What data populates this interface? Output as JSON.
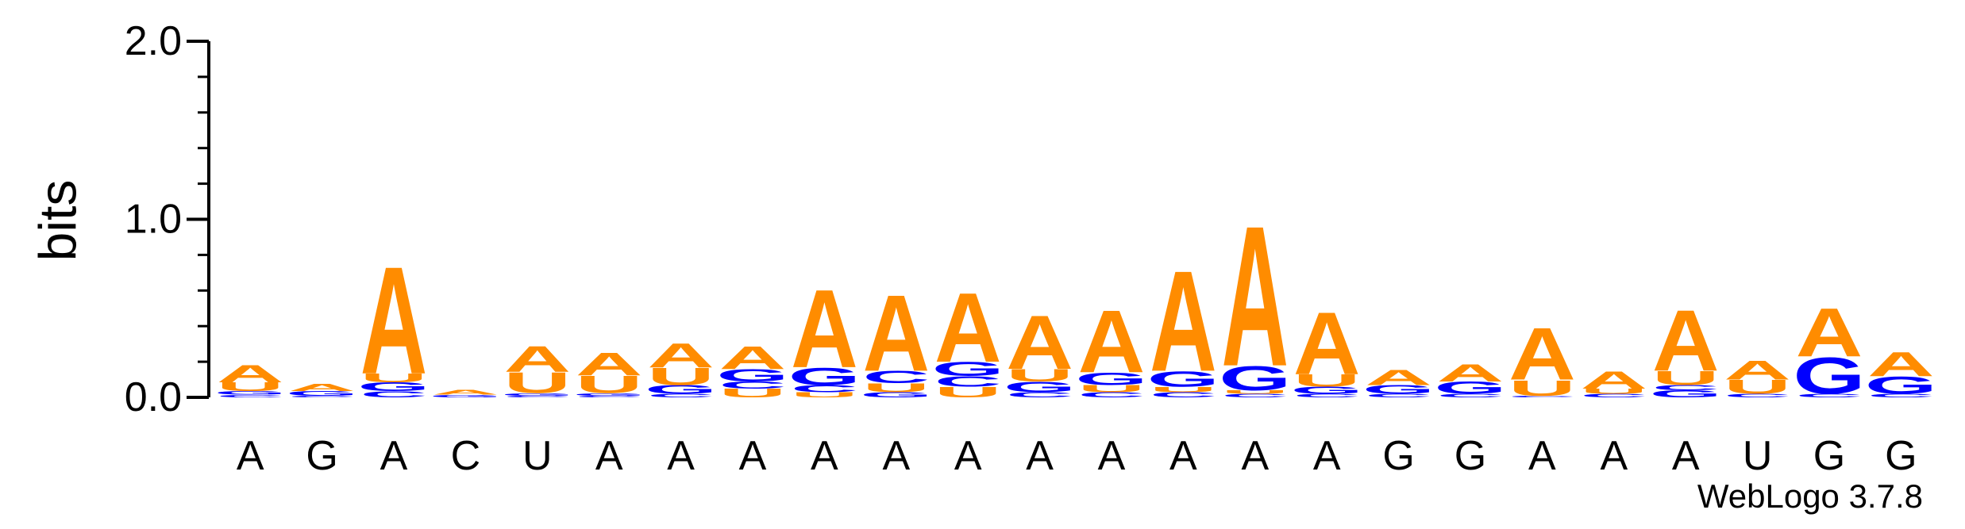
{
  "chart_data": {
    "type": "sequence-logo",
    "ylabel": "bits",
    "ylim": [
      0,
      2.0
    ],
    "ytick_labels": [
      "0.0",
      "1.0",
      "2.0"
    ],
    "yticks": [
      0.0,
      1.0,
      2.0
    ],
    "positions": [
      "A",
      "G",
      "A",
      "C",
      "U",
      "A",
      "A",
      "A",
      "A",
      "A",
      "A",
      "A",
      "A",
      "A",
      "A",
      "A",
      "G",
      "G",
      "A",
      "A",
      "A",
      "U",
      "G",
      "G"
    ],
    "colors": {
      "A": "#ff8c00",
      "U": "#ff8c00",
      "G": "#0000ff",
      "C": "#0000ff"
    },
    "stacks": [
      [
        {
          "l": "C",
          "v": 0.015
        },
        {
          "l": "G",
          "v": 0.02
        },
        {
          "l": "U",
          "v": 0.05
        },
        {
          "l": "A",
          "v": 0.1
        }
      ],
      [
        {
          "l": "C",
          "v": 0.01
        },
        {
          "l": "G",
          "v": 0.025
        },
        {
          "l": "A",
          "v": 0.04
        }
      ],
      [
        {
          "l": "C",
          "v": 0.035
        },
        {
          "l": "G",
          "v": 0.05
        },
        {
          "l": "U",
          "v": 0.05
        },
        {
          "l": "A",
          "v": 0.62
        }
      ],
      [
        {
          "l": "G",
          "v": 0.015
        },
        {
          "l": "A",
          "v": 0.025
        }
      ],
      [
        {
          "l": "C",
          "v": 0.01
        },
        {
          "l": "G",
          "v": 0.015
        },
        {
          "l": "U",
          "v": 0.12
        },
        {
          "l": "A",
          "v": 0.15
        }
      ],
      [
        {
          "l": "C",
          "v": 0.01
        },
        {
          "l": "G",
          "v": 0.015
        },
        {
          "l": "U",
          "v": 0.1
        },
        {
          "l": "A",
          "v": 0.13
        }
      ],
      [
        {
          "l": "C",
          "v": 0.02
        },
        {
          "l": "G",
          "v": 0.05
        },
        {
          "l": "U",
          "v": 0.1
        },
        {
          "l": "A",
          "v": 0.14
        }
      ],
      [
        {
          "l": "U",
          "v": 0.05
        },
        {
          "l": "C",
          "v": 0.04
        },
        {
          "l": "G",
          "v": 0.07
        },
        {
          "l": "A",
          "v": 0.13
        }
      ],
      [
        {
          "l": "U",
          "v": 0.03
        },
        {
          "l": "C",
          "v": 0.04
        },
        {
          "l": "G",
          "v": 0.1
        },
        {
          "l": "A",
          "v": 0.45
        }
      ],
      [
        {
          "l": "G",
          "v": 0.03
        },
        {
          "l": "U",
          "v": 0.05
        },
        {
          "l": "C",
          "v": 0.07
        },
        {
          "l": "A",
          "v": 0.44
        }
      ],
      [
        {
          "l": "U",
          "v": 0.06
        },
        {
          "l": "C",
          "v": 0.06
        },
        {
          "l": "G",
          "v": 0.08
        },
        {
          "l": "A",
          "v": 0.4
        }
      ],
      [
        {
          "l": "C",
          "v": 0.03
        },
        {
          "l": "G",
          "v": 0.06
        },
        {
          "l": "U",
          "v": 0.07
        },
        {
          "l": "A",
          "v": 0.31
        }
      ],
      [
        {
          "l": "C",
          "v": 0.03
        },
        {
          "l": "U",
          "v": 0.04
        },
        {
          "l": "G",
          "v": 0.07
        },
        {
          "l": "A",
          "v": 0.36
        }
      ],
      [
        {
          "l": "C",
          "v": 0.03
        },
        {
          "l": "U",
          "v": 0.03
        },
        {
          "l": "G",
          "v": 0.09
        },
        {
          "l": "A",
          "v": 0.58
        }
      ],
      [
        {
          "l": "C",
          "v": 0.02
        },
        {
          "l": "U",
          "v": 0.02
        },
        {
          "l": "G",
          "v": 0.14
        },
        {
          "l": "A",
          "v": 0.81
        }
      ],
      [
        {
          "l": "C",
          "v": 0.02
        },
        {
          "l": "G",
          "v": 0.04
        },
        {
          "l": "U",
          "v": 0.07
        },
        {
          "l": "A",
          "v": 0.36
        }
      ],
      [
        {
          "l": "C",
          "v": 0.02
        },
        {
          "l": "G",
          "v": 0.05
        },
        {
          "l": "A",
          "v": 0.09
        }
      ],
      [
        {
          "l": "C",
          "v": 0.02
        },
        {
          "l": "G",
          "v": 0.07
        },
        {
          "l": "A",
          "v": 0.1
        }
      ],
      [
        {
          "l": "C",
          "v": 0.01
        },
        {
          "l": "U",
          "v": 0.09
        },
        {
          "l": "A",
          "v": 0.3
        }
      ],
      [
        {
          "l": "C",
          "v": 0.02
        },
        {
          "l": "U",
          "v": 0.03
        },
        {
          "l": "A",
          "v": 0.1
        }
      ],
      [
        {
          "l": "G",
          "v": 0.04
        },
        {
          "l": "C",
          "v": 0.03
        },
        {
          "l": "U",
          "v": 0.08
        },
        {
          "l": "A",
          "v": 0.35
        }
      ],
      [
        {
          "l": "C",
          "v": 0.02
        },
        {
          "l": "U",
          "v": 0.08
        },
        {
          "l": "A",
          "v": 0.11
        }
      ],
      [
        {
          "l": "C",
          "v": 0.02
        },
        {
          "l": "G",
          "v": 0.21
        },
        {
          "l": "A",
          "v": 0.28
        }
      ],
      [
        {
          "l": "C",
          "v": 0.02
        },
        {
          "l": "G",
          "v": 0.1
        },
        {
          "l": "A",
          "v": 0.14
        }
      ]
    ]
  },
  "footer": {
    "version_label": "WebLogo 3.7.8"
  }
}
